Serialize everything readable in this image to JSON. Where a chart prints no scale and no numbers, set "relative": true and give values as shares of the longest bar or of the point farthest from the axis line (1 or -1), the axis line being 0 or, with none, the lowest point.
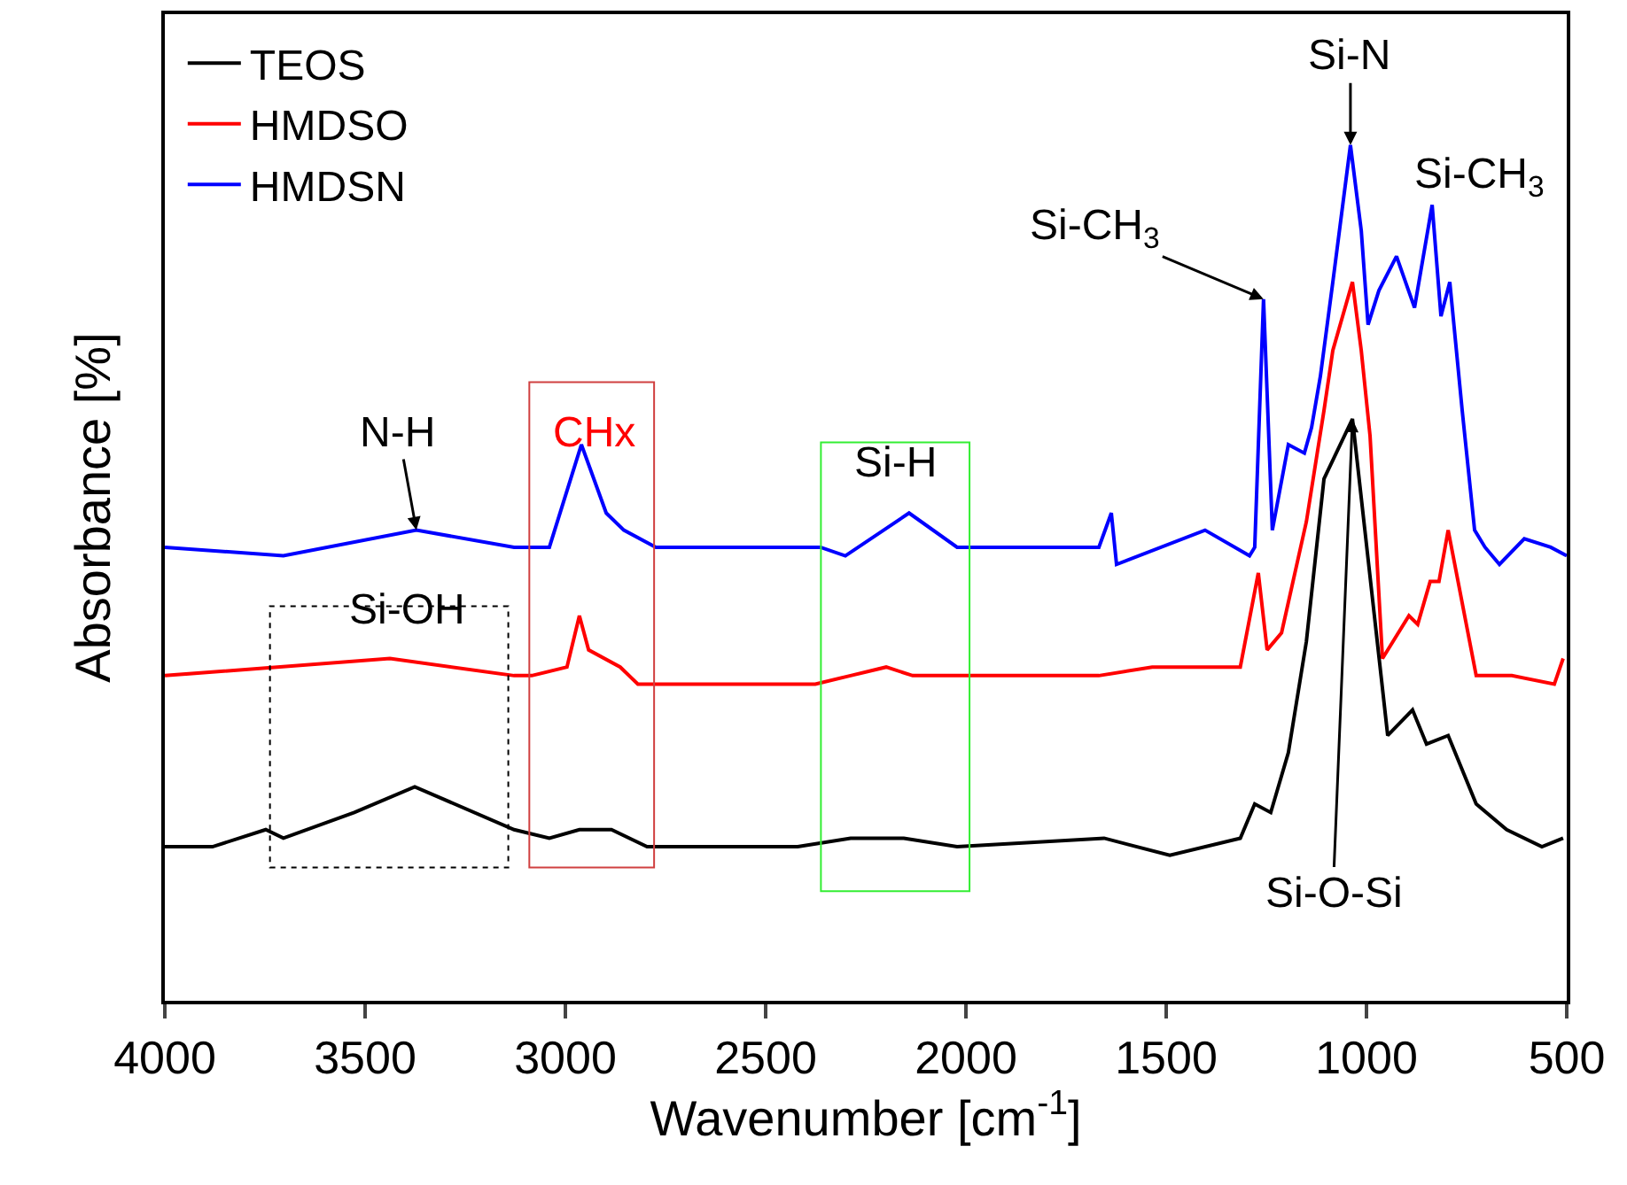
{
  "chart_data": {
    "type": "line",
    "relative": true,
    "xlabel": "Wavenumber [cm$^{-1}$]",
    "ylabel": "Absorbance [%]",
    "xlim": [
      4000,
      500
    ],
    "xticks": [
      4000,
      3500,
      3000,
      2500,
      2000,
      1500,
      1000,
      500
    ],
    "grid": false,
    "legend": "top left",
    "marker": "none",
    "line_style": "solid",
    "series": [
      {
        "name": "TEOS",
        "color": "#000000",
        "x": [
          4000,
          3881,
          3748,
          3704,
          3527,
          3376,
          3128,
          3040,
          2965,
          2885,
          2796,
          2420,
          2288,
          2155,
          2022,
          1655,
          1491,
          1315,
          1279,
          1239,
          1195,
          1150,
          1106,
          1035,
          1004,
          947,
          885,
          850,
          796,
          726,
          650,
          562,
          509
        ],
        "values": [
          0.18,
          0.18,
          0.2,
          0.19,
          0.22,
          0.25,
          0.2,
          0.19,
          0.2,
          0.2,
          0.18,
          0.18,
          0.19,
          0.19,
          0.18,
          0.19,
          0.17,
          0.19,
          0.23,
          0.22,
          0.29,
          0.42,
          0.61,
          0.68,
          0.55,
          0.31,
          0.34,
          0.3,
          0.31,
          0.23,
          0.2,
          0.18,
          0.19
        ]
      },
      {
        "name": "HMDSO",
        "color": "#ff0000",
        "x": [
          4000,
          3438,
          3128,
          3084,
          2996,
          2965,
          2942,
          2863,
          2819,
          2376,
          2288,
          2199,
          2133,
          1668,
          1535,
          1438,
          1315,
          1270,
          1248,
          1212,
          1150,
          1106,
          1084,
          1035,
          1013,
          991,
          960,
          894,
          872,
          841,
          819,
          796,
          726,
          637,
          531,
          509
        ],
        "values": [
          0.38,
          0.4,
          0.38,
          0.38,
          0.39,
          0.45,
          0.41,
          0.39,
          0.37,
          0.37,
          0.38,
          0.39,
          0.38,
          0.38,
          0.39,
          0.39,
          0.39,
          0.5,
          0.41,
          0.43,
          0.56,
          0.69,
          0.76,
          0.84,
          0.76,
          0.66,
          0.4,
          0.45,
          0.44,
          0.49,
          0.49,
          0.55,
          0.38,
          0.38,
          0.37,
          0.4
        ]
      },
      {
        "name": "HMDSN",
        "color": "#0000ff",
        "x": [
          4000,
          3704,
          3372,
          3128,
          3040,
          2960,
          2898,
          2854,
          2774,
          2363,
          2301,
          2142,
          2022,
          1668,
          1637,
          1624,
          1403,
          1292,
          1279,
          1257,
          1235,
          1195,
          1155,
          1137,
          1115,
          1084,
          1062,
          1040,
          1013,
          996,
          969,
          925,
          880,
          836,
          814,
          792,
          761,
          730,
          704,
          668,
          606,
          540,
          500
        ],
        "values": [
          0.53,
          0.52,
          0.55,
          0.53,
          0.53,
          0.65,
          0.57,
          0.55,
          0.53,
          0.53,
          0.52,
          0.57,
          0.53,
          0.53,
          0.57,
          0.51,
          0.55,
          0.52,
          0.53,
          0.82,
          0.55,
          0.65,
          0.64,
          0.67,
          0.73,
          0.84,
          0.92,
          1.0,
          0.9,
          0.79,
          0.83,
          0.87,
          0.81,
          0.93,
          0.8,
          0.84,
          0.69,
          0.55,
          0.53,
          0.51,
          0.54,
          0.53,
          0.52
        ]
      }
    ],
    "annotations": [
      {
        "text": "N-H",
        "x": 3372,
        "y": 0.55
      },
      {
        "text": "Si-N",
        "x": 1040,
        "y": 1.0
      },
      {
        "text": "Si-CH$_{3}$",
        "x": 1257,
        "y": 0.82
      },
      {
        "text": "Si-O-Si",
        "x": 1035,
        "y": 0.68
      },
      "Si-OH",
      "CHx",
      "Si-H",
      "Si-CH$_{3}$"
    ]
  }
}
